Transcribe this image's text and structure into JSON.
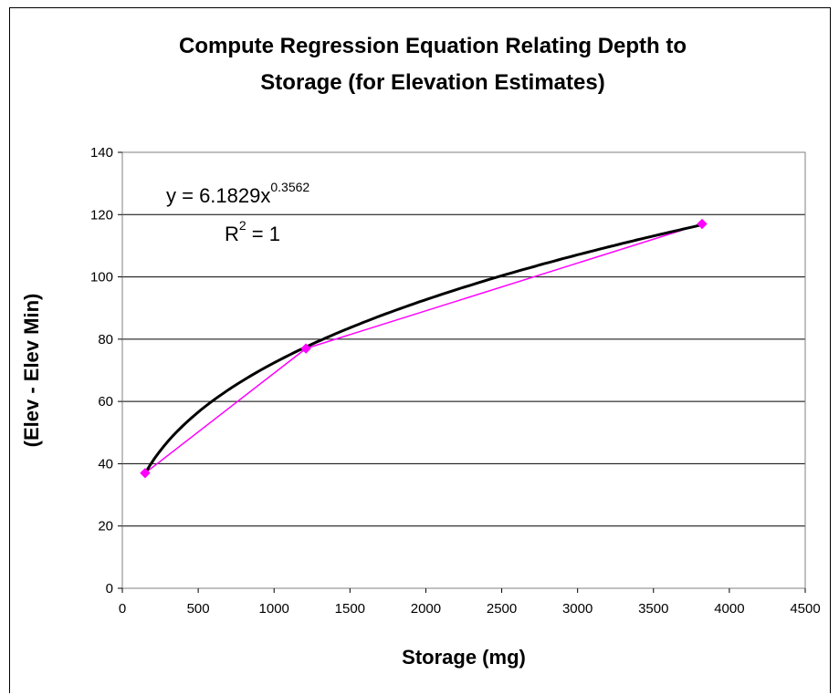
{
  "chart_data": {
    "type": "scatter",
    "title_line1": "Compute Regression Equation Relating Depth to",
    "title_line2": "Storage (for Elevation Estimates)",
    "xlabel": "Storage (mg)",
    "ylabel": "(Elev - Elev Min)",
    "xlim": [
      0,
      4500
    ],
    "ylim": [
      0,
      140
    ],
    "x_ticks": [
      0,
      500,
      1000,
      1500,
      2000,
      2500,
      3000,
      3500,
      4000,
      4500
    ],
    "y_ticks": [
      0,
      20,
      40,
      60,
      80,
      100,
      120,
      140
    ],
    "grid": "horizontal",
    "series": [
      {
        "marker": "diamond",
        "color": "#ff00ff",
        "x": [
          150,
          1210,
          3820
        ],
        "y": [
          37,
          77,
          117
        ]
      }
    ],
    "trendline": {
      "type": "power",
      "coefficient": 6.1829,
      "exponent": 0.3562,
      "color": "#000000",
      "equation_base": "y = 6.1829x",
      "equation_exponent": "0.3562",
      "r2_base": "R",
      "r2_exponent": "2",
      "r2_value": " = 1"
    }
  }
}
